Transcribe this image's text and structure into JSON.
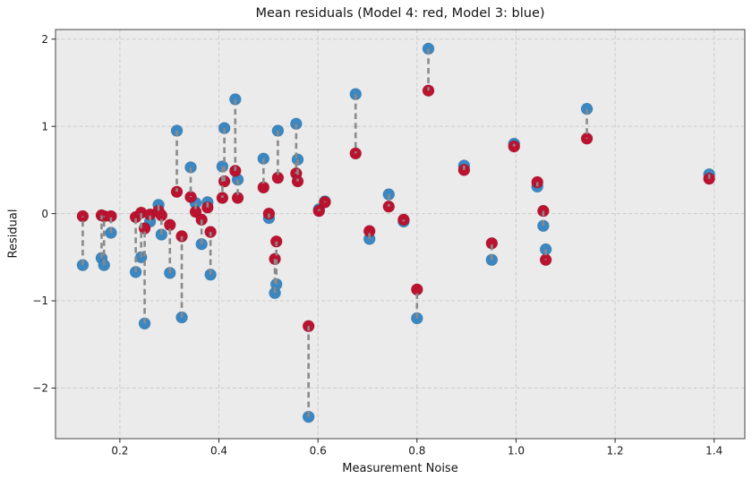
{
  "chart_data": {
    "type": "scatter",
    "title": "Mean residuals (Model 4: red, Model 3: blue)",
    "xlabel": "Measurement Noise",
    "ylabel": "Residual",
    "xlim": [
      0.07,
      1.462
    ],
    "ylim": [
      -2.58,
      2.11
    ],
    "xticks": [
      0.2,
      0.4,
      0.6,
      0.8,
      1.0,
      1.2,
      1.4
    ],
    "xtick_labels": [
      "0.2",
      "0.4",
      "0.6",
      "0.8",
      "1.0",
      "1.2",
      "1.4"
    ],
    "yticks": [
      -2,
      -1,
      0,
      1,
      2
    ],
    "ytick_labels": [
      "−2",
      "−1",
      "0",
      "1",
      "2"
    ],
    "grid": "dashed-both-axes",
    "legend": "none (models identified in title)",
    "colors": {
      "model4_red": "#bb1230",
      "model3_blue": "#3a87c2",
      "connector": "#8a8a8a",
      "plot_bg": "#ebebeb",
      "grid": "#cccccc",
      "frame": "#444444",
      "text": "#1a1a1a"
    },
    "x": [
      0.125,
      0.163,
      0.168,
      0.182,
      0.232,
      0.243,
      0.25,
      0.261,
      0.278,
      0.284,
      0.301,
      0.315,
      0.325,
      0.343,
      0.353,
      0.365,
      0.377,
      0.383,
      0.407,
      0.411,
      0.433,
      0.438,
      0.49,
      0.501,
      0.513,
      0.516,
      0.519,
      0.556,
      0.559,
      0.581,
      0.602,
      0.614,
      0.676,
      0.704,
      0.743,
      0.773,
      0.8,
      0.823,
      0.895,
      0.951,
      0.996,
      1.043,
      1.055,
      1.06,
      1.143,
      1.39
    ],
    "series": [
      {
        "name": "Model 3",
        "color_key": "model3_blue",
        "values": [
          -0.59,
          -0.51,
          -0.59,
          -0.22,
          -0.67,
          -0.5,
          -1.26,
          -0.09,
          0.1,
          -0.24,
          -0.68,
          0.95,
          -1.19,
          0.53,
          0.12,
          -0.35,
          0.13,
          -0.7,
          0.54,
          0.98,
          1.31,
          0.39,
          0.63,
          -0.05,
          -0.91,
          -0.81,
          0.95,
          1.03,
          0.62,
          -2.33,
          0.05,
          0.14,
          1.37,
          -0.29,
          0.22,
          -0.09,
          -1.2,
          1.89,
          0.55,
          -0.53,
          0.8,
          0.31,
          -0.14,
          -0.41,
          1.2,
          0.45
        ]
      },
      {
        "name": "Model 4",
        "color_key": "model4_red",
        "values": [
          -0.03,
          -0.02,
          -0.03,
          -0.03,
          -0.04,
          0.01,
          -0.17,
          -0.01,
          0.03,
          -0.02,
          -0.13,
          0.25,
          -0.26,
          0.19,
          0.02,
          -0.07,
          0.07,
          -0.21,
          0.18,
          0.37,
          0.49,
          0.18,
          0.3,
          0.0,
          -0.52,
          -0.32,
          0.41,
          0.46,
          0.37,
          -1.29,
          0.03,
          0.13,
          0.69,
          -0.2,
          0.08,
          -0.07,
          -0.87,
          1.41,
          0.5,
          -0.34,
          0.77,
          0.36,
          0.03,
          -0.53,
          0.86,
          0.4
        ]
      }
    ],
    "connectors": true
  }
}
